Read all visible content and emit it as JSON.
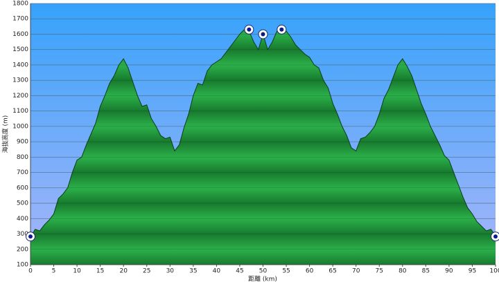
{
  "chart_data": {
    "type": "area",
    "x_label": "距離 (km)",
    "y_label": "海抜高度 (m)",
    "x": [
      0,
      1,
      2,
      3,
      4,
      5,
      6,
      7,
      8,
      9,
      10,
      11,
      12,
      13,
      14,
      15,
      16,
      17,
      18,
      19,
      20,
      21,
      22,
      23,
      24,
      25,
      26,
      27,
      28,
      29,
      30,
      31,
      32,
      33,
      34,
      35,
      36,
      37,
      38,
      39,
      40,
      41,
      42,
      43,
      44,
      45,
      46,
      47,
      48,
      49,
      50,
      51,
      52,
      53,
      54,
      55,
      56,
      57,
      58,
      59,
      60,
      61,
      62,
      63,
      64,
      65,
      66,
      67,
      68,
      69,
      70,
      71,
      72,
      73,
      74,
      75,
      76,
      77,
      78,
      79,
      80,
      81,
      82,
      83,
      84,
      85,
      86,
      87,
      88,
      89,
      90,
      91,
      92,
      93,
      94,
      95,
      96,
      97,
      98,
      99,
      100
    ],
    "series": [
      {
        "color": "#1e9a3c",
        "values": [
          280,
          330,
          320,
          360,
          390,
          430,
          530,
          560,
          600,
          700,
          780,
          800,
          880,
          950,
          1020,
          1130,
          1200,
          1280,
          1330,
          1400,
          1440,
          1380,
          1290,
          1200,
          1130,
          1140,
          1050,
          1000,
          940,
          920,
          930,
          840,
          880,
          990,
          1080,
          1200,
          1280,
          1270,
          1360,
          1400,
          1420,
          1440,
          1480,
          1520,
          1560,
          1600,
          1630,
          1620,
          1550,
          1500,
          1600,
          1500,
          1550,
          1620,
          1630,
          1620,
          1580,
          1530,
          1500,
          1470,
          1450,
          1400,
          1380,
          1300,
          1250,
          1150,
          1080,
          1000,
          940,
          860,
          840,
          920,
          930,
          960,
          1000,
          1080,
          1180,
          1240,
          1320,
          1400,
          1440,
          1390,
          1330,
          1240,
          1150,
          1080,
          1000,
          940,
          880,
          810,
          780,
          700,
          620,
          540,
          470,
          430,
          380,
          350,
          320,
          330,
          290
        ]
      }
    ],
    "markers": {
      "x": [
        0,
        47,
        50,
        54,
        100
      ],
      "y": [
        283,
        1630,
        1600,
        1630,
        283
      ]
    },
    "xlim": [
      0,
      100
    ],
    "xticks": [
      0,
      5,
      10,
      15,
      20,
      25,
      30,
      35,
      40,
      45,
      50,
      55,
      60,
      65,
      70,
      75,
      80,
      85,
      90,
      95,
      100
    ],
    "ylim": [
      100,
      1800
    ],
    "yticks": [
      100,
      200,
      300,
      400,
      500,
      600,
      700,
      800,
      900,
      1000,
      1100,
      1200,
      1300,
      1400,
      1500,
      1600,
      1700,
      1800
    ],
    "grid": true
  }
}
